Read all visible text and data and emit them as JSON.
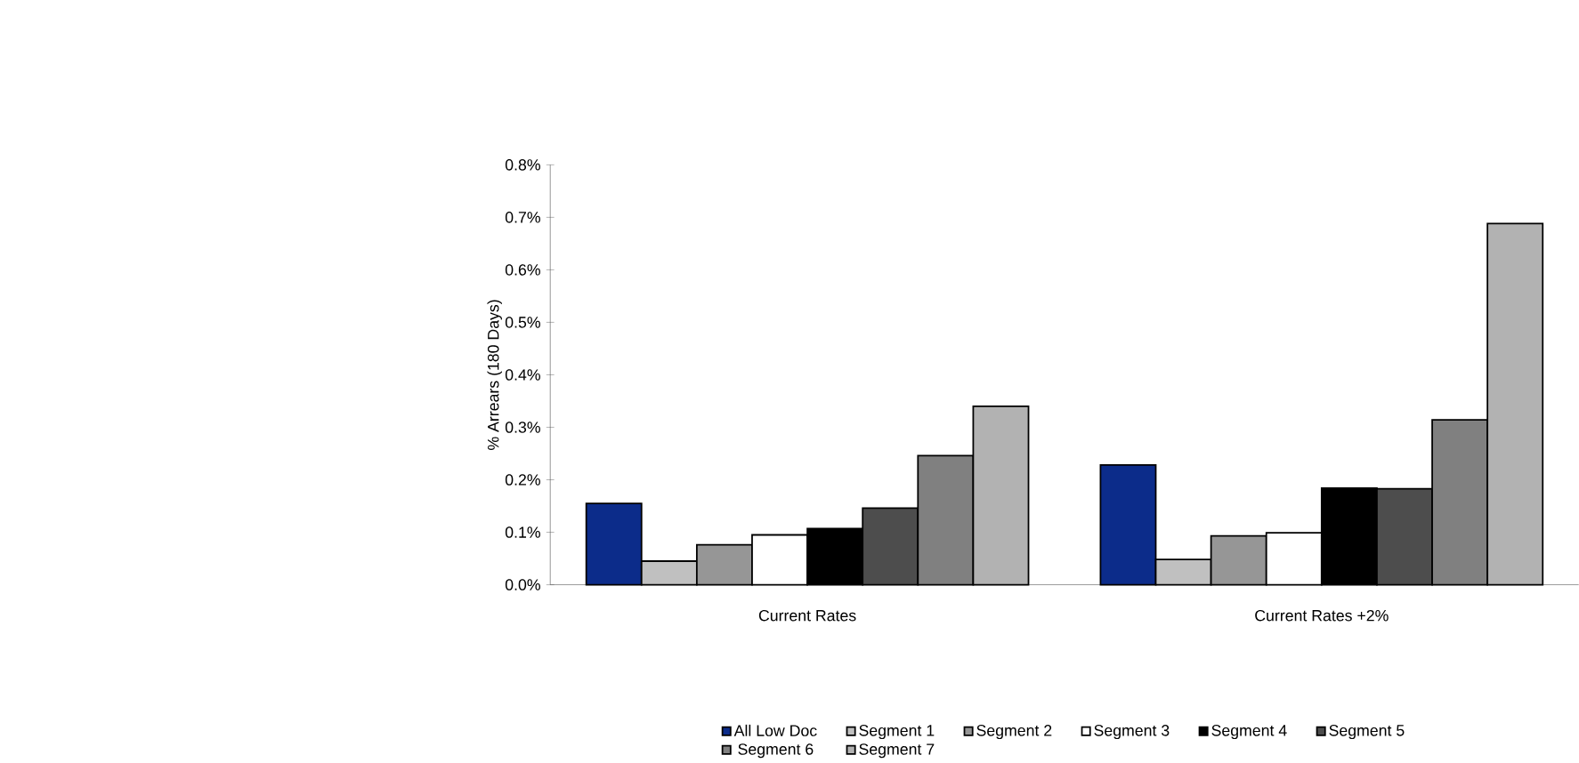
{
  "chart_data": {
    "type": "bar",
    "ylabel": "% Arrears (180 Days)",
    "categories": [
      "Current Rates",
      "Current Rates +2%"
    ],
    "series": [
      {
        "name": "All Low Doc",
        "color": "#0c2c8a",
        "values": [
          0.155,
          0.228
        ]
      },
      {
        "name": "Segment 1",
        "color": "#c0c0c0",
        "values": [
          0.045,
          0.048
        ]
      },
      {
        "name": "Segment 2",
        "color": "#969696",
        "values": [
          0.076,
          0.093
        ]
      },
      {
        "name": "Segment 3",
        "color": "#ffffff",
        "values": [
          0.095,
          0.099
        ]
      },
      {
        "name": "Segment 4",
        "color": "#000000",
        "values": [
          0.107,
          0.184
        ]
      },
      {
        "name": "Segment 5",
        "color": "#4d4d4d",
        "values": [
          0.146,
          0.183
        ]
      },
      {
        "name": "Segment 6",
        "color": "#808080",
        "values": [
          0.246,
          0.314
        ]
      },
      {
        "name": "Segment 7",
        "color": "#b2b2b2",
        "values": [
          0.34,
          0.688
        ]
      }
    ],
    "ylim": [
      0,
      0.8
    ],
    "yticks": [
      {
        "value": 0,
        "label": "0.0%"
      },
      {
        "value": 0.1,
        "label": "0.1%"
      },
      {
        "value": 0.2,
        "label": "0.2%"
      },
      {
        "value": 0.3,
        "label": "0.3%"
      },
      {
        "value": 0.4,
        "label": "0.4%"
      },
      {
        "value": 0.5,
        "label": "0.5%"
      },
      {
        "value": 0.6,
        "label": "0.6%"
      },
      {
        "value": 0.7,
        "label": "0.7%"
      },
      {
        "value": 0.8,
        "label": "0.8%"
      }
    ],
    "legend": "bottom"
  }
}
